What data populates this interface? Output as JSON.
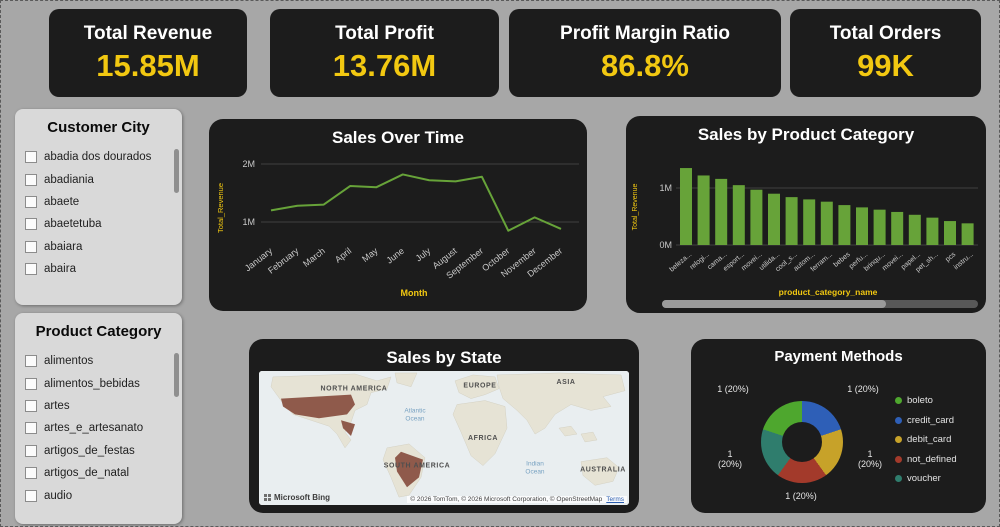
{
  "colors": {
    "background": "#a7a7a7",
    "card_bg": "#1c1c1c",
    "accent_yellow": "#F2C811",
    "green": "#67A339",
    "axis_text": "#c9c9c9",
    "grid": "#3f3f3f",
    "panel_bg": "#d9d9d9",
    "map_highlight": "#8f5a4b"
  },
  "kpi_cards": [
    {
      "title": "Total Revenue",
      "value": "15.85M"
    },
    {
      "title": "Total Profit",
      "value": "13.76M"
    },
    {
      "title": "Profit Margin Ratio",
      "value": "86.8%"
    },
    {
      "title": "Total Orders",
      "value": "99K"
    }
  ],
  "filters": [
    {
      "title": "Customer City",
      "items": [
        "abadia dos dourados",
        "abadiania",
        "abaete",
        "abaetetuba",
        "abaiara",
        "abaira"
      ]
    },
    {
      "title": "Product Category",
      "items": [
        "alimentos",
        "alimentos_bebidas",
        "artes",
        "artes_e_artesanato",
        "artigos_de_festas",
        "artigos_de_natal",
        "audio"
      ]
    }
  ],
  "map": {
    "title": "Sales by State",
    "continent_labels": [
      "NORTH AMERICA",
      "EUROPE",
      "ASIA",
      "AFRICA",
      "SOUTH AMERICA",
      "AUSTRALIA"
    ],
    "ocean_labels": [
      "Atlantic Ocean",
      "Indian Ocean"
    ],
    "branding": "Microsoft Bing",
    "attribution": "© 2026 TomTom, © 2026 Microsoft Corporation, © OpenStreetMap",
    "terms_label": "Terms"
  },
  "chart_data": [
    {
      "type": "line",
      "title": "Sales Over Time",
      "xlabel": "Month",
      "ylabel": "Total_Revenue",
      "x": [
        "January",
        "February",
        "March",
        "April",
        "May",
        "June",
        "July",
        "August",
        "September",
        "October",
        "November",
        "December"
      ],
      "values": [
        1.2,
        1.28,
        1.3,
        1.62,
        1.6,
        1.82,
        1.72,
        1.7,
        1.78,
        0.85,
        1.08,
        0.88
      ],
      "unit": "M",
      "yticks": [
        "1M",
        "2M"
      ],
      "ylim": [
        0.7,
        2.2
      ],
      "line_color": "#67A339",
      "grid": true,
      "legend_position": "none"
    },
    {
      "type": "bar",
      "title": "Sales by Product Category",
      "xlabel": "product_category_name",
      "ylabel": "Total_Revenue",
      "categories": [
        "beleza...",
        "relogi...",
        "cama...",
        "esport...",
        "movei...",
        "utilida...",
        "cool_s...",
        "autom...",
        "ferram...",
        "bebes",
        "perfu...",
        "brinqu...",
        "movei...",
        "papel...",
        "pet_sh...",
        "pcs",
        "instru..."
      ],
      "values": [
        1.35,
        1.22,
        1.16,
        1.05,
        0.97,
        0.9,
        0.84,
        0.8,
        0.76,
        0.7,
        0.66,
        0.62,
        0.58,
        0.53,
        0.48,
        0.42,
        0.38
      ],
      "unit": "M",
      "yticks": [
        "0M",
        "1M"
      ],
      "ylim": [
        0,
        1.5
      ],
      "bar_color": "#67A339",
      "grid": true,
      "legend_position": "none"
    },
    {
      "type": "pie",
      "title": "Payment Methods",
      "donut": true,
      "categories": [
        "boleto",
        "credit_card",
        "debit_card",
        "not_defined",
        "voucher"
      ],
      "values": [
        1,
        1,
        1,
        1,
        1
      ],
      "point_labels": [
        "1 (20%)",
        "1 (20%)",
        "1 (20%)",
        "1 (20%)",
        "1 (20%)"
      ],
      "colors": [
        "#4EA72E",
        "#2E5FB7",
        "#C7A229",
        "#A33A2B",
        "#2F7D6D"
      ],
      "legend_position": "right"
    }
  ]
}
